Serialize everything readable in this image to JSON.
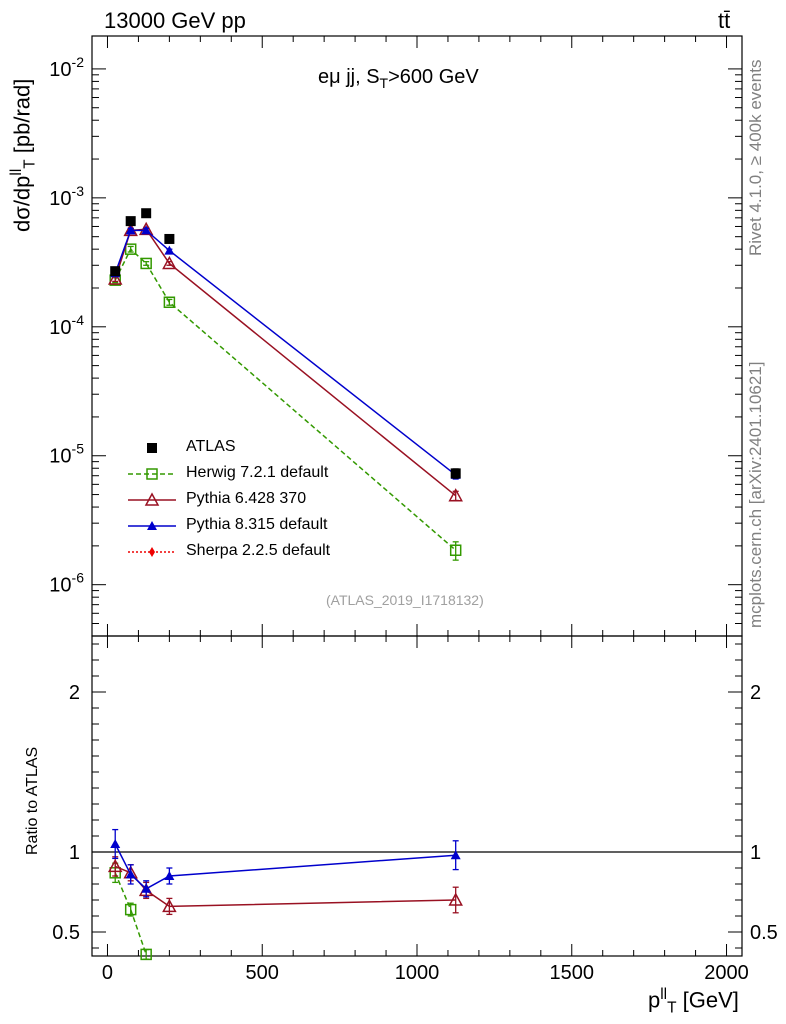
{
  "header": {
    "energy_label": "13000 GeV pp",
    "process_label": "tt̄"
  },
  "side_labels": {
    "rivet": "Rivet 4.1.0, ≥ 400k events",
    "source": "mcplots.cern.ch [arXiv:2401.10621]"
  },
  "chart_data": [
    {
      "type": "scatter",
      "title": "eμ jj, S_T>600 GeV",
      "title_parts": {
        "main": "eμ jj, S",
        "sub": "T",
        "tail": ">600 GeV"
      },
      "analysis_id": "(ATLAS_2019_I1718132)",
      "ylabel": "dσ/dp_T^ll [pb/rad]",
      "ylabel_parts": {
        "main": "dσ/dp",
        "sup": "ll",
        "sub": "T",
        "tail": " [pb/rad]"
      },
      "yscale": "log",
      "ylim": [
        4e-07,
        0.018
      ],
      "xlim": [
        -50,
        2050
      ],
      "ytick_labels": [
        "10^-6",
        "10^-5",
        "10^-4",
        "10^-3",
        "10^-2"
      ],
      "legend": [
        "ATLAS",
        "Herwig 7.2.1 default",
        "Pythia 6.428 370",
        "Pythia 8.315 default",
        "Sherpa 2.2.5 default"
      ],
      "series": [
        {
          "name": "ATLAS",
          "color": "#000000",
          "marker": "square-filled",
          "x": [
            25,
            75,
            125,
            200,
            1125
          ],
          "y": [
            0.00027,
            0.00066,
            0.00076,
            0.00048,
            7.3e-06
          ],
          "err": [
            2e-05,
            4e-05,
            4e-05,
            3e-05,
            6e-07
          ]
        },
        {
          "name": "Herwig 7.2.1 default",
          "color": "#339900",
          "marker": "square-open",
          "dash": "dashed",
          "x": [
            25,
            75,
            125,
            200,
            1125
          ],
          "y": [
            0.00023,
            0.0004,
            0.00031,
            0.000155,
            1.85e-06
          ],
          "err": [
            1e-05,
            2e-05,
            1e-05,
            8e-06,
            3e-07
          ]
        },
        {
          "name": "Pythia 6.428 370",
          "color": "#991122",
          "marker": "triangle-open",
          "x": [
            25,
            75,
            125,
            200,
            1125
          ],
          "y": [
            0.000235,
            0.00056,
            0.00057,
            0.00031,
            4.9e-06
          ],
          "err": [
            1e-05,
            2e-05,
            2e-05,
            1e-05,
            4e-07
          ]
        },
        {
          "name": "Pythia 8.315 default",
          "color": "#0000cc",
          "marker": "triangle-filled",
          "x": [
            25,
            75,
            125,
            200,
            1125
          ],
          "y": [
            0.00026,
            0.00056,
            0.00056,
            0.00039,
            7.1e-06
          ],
          "err": [
            1e-05,
            2e-05,
            2e-05,
            1e-05,
            5e-07
          ]
        },
        {
          "name": "Sherpa 2.2.5 default",
          "color": "#ee0000",
          "marker": "diamond-filled",
          "dash": "dotted",
          "x": [],
          "y": [],
          "err": []
        }
      ]
    },
    {
      "type": "scatter",
      "ylabel": "Ratio to ATLAS",
      "xlabel": "p_T^ll [GeV]",
      "xlabel_parts": {
        "main": "p",
        "sup": "ll",
        "sub": "T",
        "tail": " [GeV]"
      },
      "ylim": [
        0.35,
        2.35
      ],
      "xlim": [
        -50,
        2050
      ],
      "yticks": [
        0.5,
        1,
        2
      ],
      "ytick_labels": [
        "0.5",
        "1",
        "2"
      ],
      "xticks": [
        0,
        500,
        1000,
        1500,
        2000
      ],
      "xtick_labels": [
        "0",
        "500",
        "1000",
        "1500",
        "2000"
      ],
      "reference_line": 1.0,
      "series": [
        {
          "name": "Herwig 7.2.1 default",
          "color": "#339900",
          "marker": "square-open",
          "dash": "dashed",
          "x": [
            25,
            75,
            125
          ],
          "y": [
            0.87,
            0.64,
            0.36
          ],
          "err": [
            0.06,
            0.04,
            0.03
          ]
        },
        {
          "name": "Pythia 6.428 370",
          "color": "#991122",
          "marker": "triangle-open",
          "x": [
            25,
            75,
            125,
            200,
            1125
          ],
          "y": [
            0.91,
            0.87,
            0.76,
            0.66,
            0.7
          ],
          "err": [
            0.06,
            0.05,
            0.05,
            0.05,
            0.08
          ]
        },
        {
          "name": "Pythia 8.315 default",
          "color": "#0000cc",
          "marker": "triangle-filled",
          "x": [
            25,
            75,
            125,
            200,
            1125
          ],
          "y": [
            1.05,
            0.86,
            0.77,
            0.85,
            0.98
          ],
          "err": [
            0.09,
            0.06,
            0.05,
            0.05,
            0.09
          ]
        }
      ]
    }
  ]
}
